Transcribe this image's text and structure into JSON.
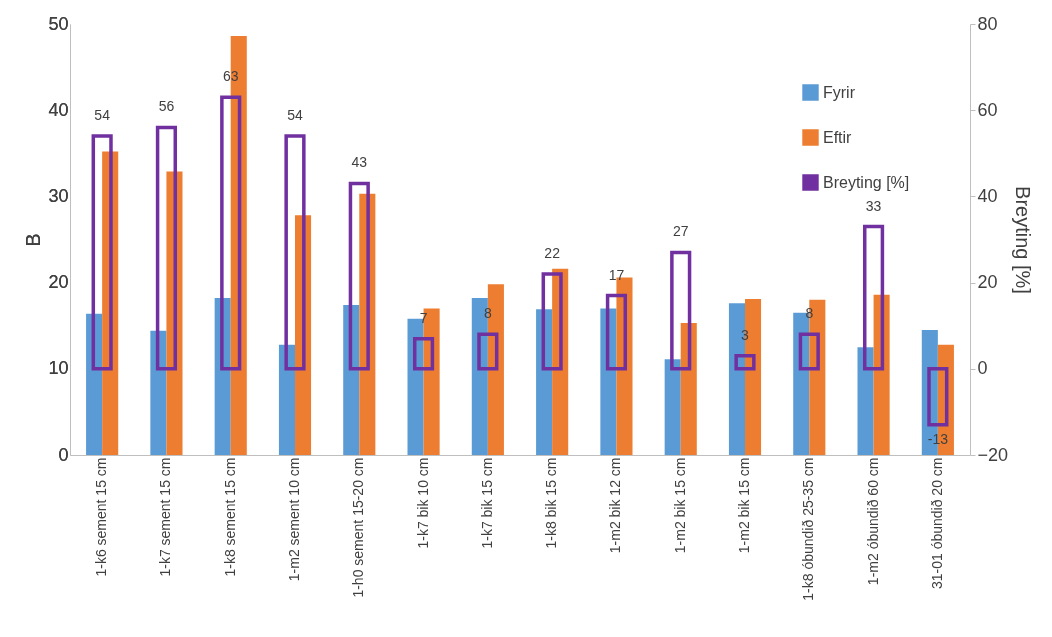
{
  "chart_data": {
    "type": "bar",
    "ylabel": "B",
    "y2label": "Breyting [%]",
    "categories": [
      "1-k6 sement 15 cm",
      "1-k7 sement 15 cm",
      "1-k8 sement 15 cm",
      "1-m2 sement 10 cm",
      "1-h0 sement 15-20 cm",
      "1-k7  bik 10 cm",
      "1-k7 bik 15 cm",
      "1-k8 bik 15 cm",
      "1-m2 bik 12 cm",
      "1-m2 bik 15 cm",
      "1-m2 bik 15 cm",
      "1-k8 óbundið 25-35 cm",
      "1-m2 óbundið 60 cm",
      "31-01 óbundið 20 cm"
    ],
    "series": [
      {
        "name": "Fyrir",
        "color": "#5b9bd5",
        "values": [
          16.4,
          14.4,
          18.2,
          12.8,
          17.4,
          15.8,
          18.2,
          16.9,
          17.0,
          11.1,
          17.6,
          16.5,
          12.5,
          14.5
        ]
      },
      {
        "name": "Eftir",
        "color": "#ed7d31",
        "values": [
          35.2,
          32.9,
          48.6,
          27.8,
          30.3,
          17.0,
          19.8,
          21.6,
          20.6,
          15.3,
          18.1,
          18.0,
          18.6,
          12.8
        ]
      },
      {
        "name": "Breyting [%]",
        "color": "#7030a0",
        "axis": "y2",
        "values": [
          54,
          56,
          63,
          54,
          43,
          7,
          8,
          22,
          17,
          27,
          3,
          8,
          33,
          -13
        ],
        "value_labels": [
          "54",
          "56",
          "63",
          "54",
          "43",
          "7",
          "8",
          "22",
          "17",
          "27",
          "3",
          "8",
          "33",
          "-13"
        ]
      }
    ],
    "ylim": [
      0,
      50
    ],
    "yticks": [
      0,
      10,
      20,
      30,
      40,
      50
    ],
    "y2lim": [
      -20,
      80
    ],
    "y2ticks": [
      -20,
      0,
      20,
      40,
      60,
      80
    ],
    "grid": false,
    "legend": "top right"
  }
}
